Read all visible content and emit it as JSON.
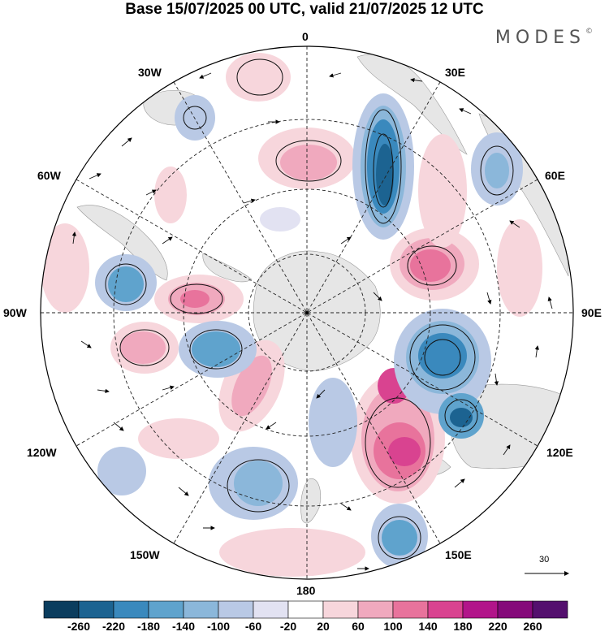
{
  "header": {
    "title": "Base 15/07/2025 00 UTC, valid 21/07/2025 12 UTC",
    "brand": "MODES",
    "brand_mark": "©"
  },
  "map": {
    "projection": "south polar stereographic",
    "longitude_labels": {
      "top": "0",
      "top_left": "30W",
      "top_right": "30E",
      "upper_left": "60W",
      "upper_right": "60E",
      "left": "90W",
      "right": "90E",
      "lower_left": "120W",
      "lower_right": "120E",
      "bottom_left": "150W",
      "bottom_right": "150E",
      "bottom": "180"
    },
    "reference_vector_label": "30"
  },
  "colorbar": {
    "labels": [
      "-260",
      "-220",
      "-180",
      "-140",
      "-100",
      "-60",
      "-20",
      "20",
      "60",
      "100",
      "140",
      "180",
      "220",
      "260"
    ],
    "colors": [
      "#0b3d5e",
      "#1c6391",
      "#3a89bd",
      "#5fa3cd",
      "#8bb7da",
      "#b9c9e5",
      "#e2e2f2",
      "#ffffff",
      "#f7d6dc",
      "#f0a9be",
      "#e8739c",
      "#d94390",
      "#b2158a",
      "#850a7a",
      "#54106e"
    ]
  }
}
